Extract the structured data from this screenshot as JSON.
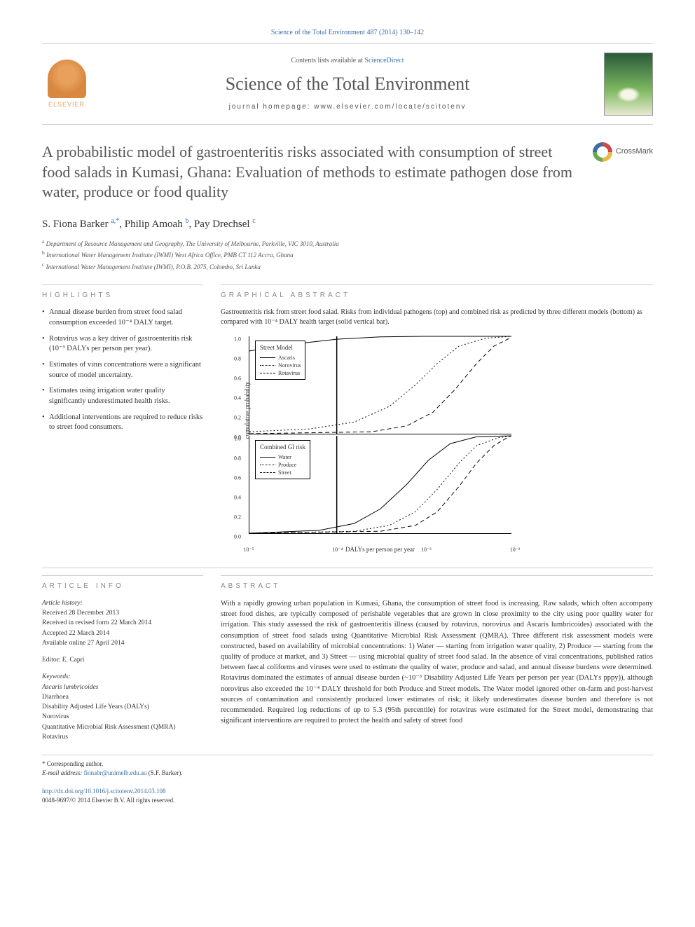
{
  "top_citation": "Science of the Total Environment 487 (2014) 130–142",
  "header": {
    "contents_text": "Contents lists available at ",
    "contents_link": "ScienceDirect",
    "journal_name": "Science of the Total Environment",
    "homepage_label": "journal homepage: ",
    "homepage_url": "www.elsevier.com/locate/scitotenv",
    "publisher": "ELSEVIER"
  },
  "crossmark_label": "CrossMark",
  "title": "A probabilistic model of gastroenteritis risks associated with consumption of street food salads in Kumasi, Ghana: Evaluation of methods to estimate pathogen dose from water, produce or food quality",
  "authors_html": "S. Fiona Barker <sup>a,*</sup>, Philip Amoah <sup>b</sup>, Pay Drechsel <sup>c</sup>",
  "affiliations": [
    "a  Department of Resource Management and Geography, The University of Melbourne, Parkville, VIC 3010, Australia",
    "b  International Water Management Institute (IWMI) West Africa Office, PMB CT 112 Accra, Ghana",
    "c  International Water Management Institute (IWMI), P.O.B. 2075, Colombo, Sri Lanka"
  ],
  "section_labels": {
    "highlights": "HIGHLIGHTS",
    "graphical": "GRAPHICAL ABSTRACT",
    "info": "ARTICLE INFO",
    "abstract": "ABSTRACT"
  },
  "highlights": [
    "Annual disease burden from street food salad consumption exceeded 10⁻⁴ DALY target.",
    "Rotavirus was a key driver of gastroenteritis risk (10⁻³ DALYs per person per year).",
    "Estimates of virus concentrations were a significant source of model uncertainty.",
    "Estimates using irrigation water quality significantly underestimated health risks.",
    "Additional interventions are required to reduce risks to street food consumers."
  ],
  "graphical_caption": "Gastroenteritis risk from street food salad. Risks from individual pathogens (top) and combined risk as predicted by three different models (bottom) as compared with 10⁻⁴ DALY health target (solid vertical bar).",
  "chart": {
    "y_label": "cumulative probability",
    "x_label": "DALYs per person per year",
    "ylim": [
      0.0,
      1.0
    ],
    "ytick_step": 0.2,
    "yticks": [
      "0.0",
      "0.2",
      "0.4",
      "0.6",
      "0.8",
      "1.0"
    ],
    "xlim_log10": [
      -5,
      -2
    ],
    "xticks": [
      "10⁻⁵",
      "10⁻⁴",
      "10⁻³",
      "10⁻²"
    ],
    "target_vertical_x_log10": -4,
    "line_color": "#000000",
    "background": "#ffffff",
    "panel_top": {
      "title": "Street Model",
      "series": [
        {
          "name": "Ascaris",
          "dash": "solid",
          "points_log10x_y": [
            [
              -5,
              0.85
            ],
            [
              -4.5,
              0.92
            ],
            [
              -4,
              0.97
            ],
            [
              -3.5,
              0.995
            ],
            [
              -3,
              1.0
            ],
            [
              -2,
              1.0
            ]
          ]
        },
        {
          "name": "Norovirus",
          "dash": "dotted",
          "points_log10x_y": [
            [
              -5,
              0.02
            ],
            [
              -4.3,
              0.05
            ],
            [
              -3.8,
              0.12
            ],
            [
              -3.4,
              0.28
            ],
            [
              -3.1,
              0.5
            ],
            [
              -2.85,
              0.72
            ],
            [
              -2.6,
              0.9
            ],
            [
              -2.3,
              0.98
            ],
            [
              -2,
              1.0
            ]
          ]
        },
        {
          "name": "Rotavirus",
          "dash": "dashed",
          "points_log10x_y": [
            [
              -5,
              0.0
            ],
            [
              -3.6,
              0.02
            ],
            [
              -3.2,
              0.08
            ],
            [
              -2.9,
              0.22
            ],
            [
              -2.65,
              0.45
            ],
            [
              -2.4,
              0.72
            ],
            [
              -2.2,
              0.9
            ],
            [
              -2,
              0.99
            ]
          ]
        }
      ]
    },
    "panel_bottom": {
      "title": "Combined GI risk",
      "series": [
        {
          "name": "Water",
          "dash": "solid",
          "points_log10x_y": [
            [
              -5,
              0.0
            ],
            [
              -4.2,
              0.03
            ],
            [
              -3.8,
              0.1
            ],
            [
              -3.5,
              0.25
            ],
            [
              -3.2,
              0.5
            ],
            [
              -2.95,
              0.75
            ],
            [
              -2.7,
              0.92
            ],
            [
              -2.4,
              0.99
            ],
            [
              -2,
              1.0
            ]
          ]
        },
        {
          "name": "Produce",
          "dash": "dotted",
          "points_log10x_y": [
            [
              -5,
              0.0
            ],
            [
              -3.8,
              0.02
            ],
            [
              -3.4,
              0.08
            ],
            [
              -3.1,
              0.22
            ],
            [
              -2.85,
              0.45
            ],
            [
              -2.6,
              0.72
            ],
            [
              -2.4,
              0.9
            ],
            [
              -2.15,
              0.98
            ],
            [
              -2,
              1.0
            ]
          ]
        },
        {
          "name": "Street",
          "dash": "dashed",
          "points_log10x_y": [
            [
              -5,
              0.0
            ],
            [
              -3.5,
              0.02
            ],
            [
              -3.1,
              0.08
            ],
            [
              -2.85,
              0.22
            ],
            [
              -2.6,
              0.48
            ],
            [
              -2.4,
              0.72
            ],
            [
              -2.2,
              0.9
            ],
            [
              -2.05,
              0.98
            ],
            [
              -2,
              1.0
            ]
          ]
        }
      ]
    }
  },
  "article_info": {
    "history_label": "Article history:",
    "history": [
      "Received 28 December 2013",
      "Received in revised form 22 March 2014",
      "Accepted 22 March 2014",
      "Available online 27 April 2014"
    ],
    "editor_label": "Editor: ",
    "editor": "E. Capri",
    "keywords_label": "Keywords:",
    "keywords": [
      "Ascaris lumbricoides",
      "Diarrhoea",
      "Disability Adjusted Life Years (DALYs)",
      "Norovirus",
      "Quantitative Microbial Risk Assessment (QMRA)",
      "Rotavirus"
    ]
  },
  "abstract": "With a rapidly growing urban population in Kumasi, Ghana, the consumption of street food is increasing. Raw salads, which often accompany street food dishes, are typically composed of perishable vegetables that are grown in close proximity to the city using poor quality water for irrigation. This study assessed the risk of gastroenteritis illness (caused by rotavirus, norovirus and Ascaris lumbricoides) associated with the consumption of street food salads using Quantitative Microbial Risk Assessment (QMRA). Three different risk assessment models were constructed, based on availability of microbial concentrations: 1) Water — starting from irrigation water quality, 2) Produce — starting from the quality of produce at market, and 3) Street — using microbial quality of street food salad. In the absence of viral concentrations, published ratios between faecal coliforms and viruses were used to estimate the quality of water, produce and salad, and annual disease burdens were determined. Rotavirus dominated the estimates of annual disease burden (~10⁻³ Disability Adjusted Life Years per person per year (DALYs pppy)), although norovirus also exceeded the 10⁻⁴ DALY threshold for both Produce and Street models. The Water model ignored other on-farm and post-harvest sources of contamination and consistently produced lower estimates of risk; it likely underestimates disease burden and therefore is not recommended. Required log reductions of up to 5.3 (95th percentile) for rotavirus were estimated for the Street model, demonstrating that significant interventions are required to protect the health and safety of street food",
  "footer": {
    "corresponding": "* Corresponding author.",
    "email_label": "E-mail address: ",
    "email": "fionabr@unimelb.edu.au",
    "email_attrib": " (S.F. Barker).",
    "doi": "http://dx.doi.org/10.1016/j.scitotenv.2014.03.108",
    "issn_line": "0048-9697/© 2014 Elsevier B.V. All rights reserved."
  }
}
